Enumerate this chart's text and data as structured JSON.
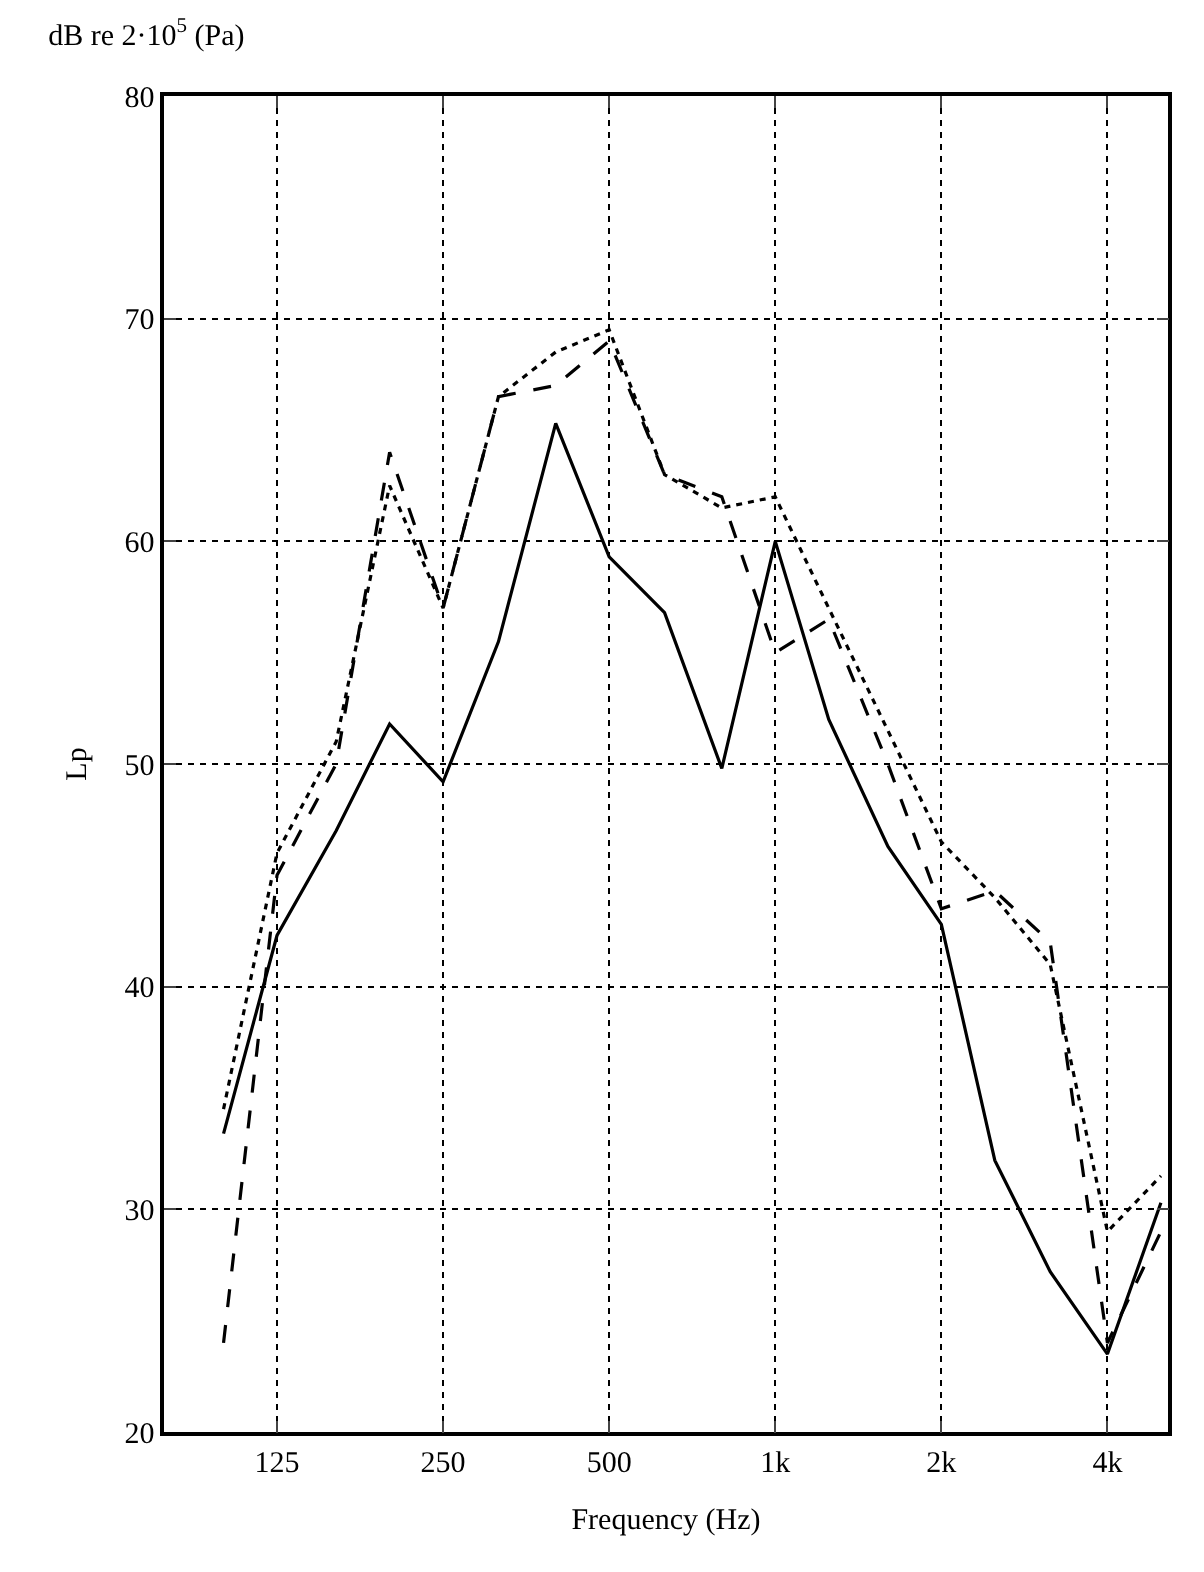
{
  "chart_data": {
    "type": "line",
    "title": "dB re 2·10$^{5}$ (Pa)",
    "xlabel": "Frequency (Hz)",
    "ylabel": "Lp",
    "x": [
      100,
      125,
      160,
      200,
      250,
      315,
      400,
      500,
      630,
      800,
      1000,
      1250,
      1600,
      2000,
      2500,
      3150,
      4000,
      5000
    ],
    "series": [
      {
        "color": "#000000",
        "line_style": "solid",
        "values": [
          33.4,
          42.3,
          47,
          51.8,
          49.2,
          55.5,
          65.3,
          59.3,
          56.8,
          49.8,
          60,
          52,
          46.3,
          42.8,
          32.2,
          27.2,
          23.5,
          30.3
        ]
      },
      {
        "color": "#000000",
        "line_style": "dashed",
        "values": [
          24,
          45,
          50,
          64,
          57,
          66.5,
          67,
          69,
          63,
          62,
          55,
          56.5,
          50,
          43.5,
          44.3,
          42,
          24,
          29
        ]
      },
      {
        "color": "#000000",
        "line_style": "dotted",
        "values": [
          34.5,
          46,
          51,
          62.5,
          57,
          66.5,
          68.5,
          69.5,
          63,
          61.5,
          62,
          57,
          51.5,
          46.5,
          44,
          41,
          29,
          31.5
        ]
      }
    ],
    "log": "x",
    "xlim": [
      78,
      5150
    ],
    "ylim": [
      20,
      80
    ],
    "xticks": [
      {
        "value": 125,
        "label": "125"
      },
      {
        "value": 250,
        "label": "250"
      },
      {
        "value": 500,
        "label": "500"
      },
      {
        "value": 1000,
        "label": "1k"
      },
      {
        "value": 2000,
        "label": "2k"
      },
      {
        "value": 4000,
        "label": "4k"
      }
    ],
    "yticks": [
      20,
      30,
      40,
      50,
      60,
      70,
      80
    ],
    "grid": true
  }
}
